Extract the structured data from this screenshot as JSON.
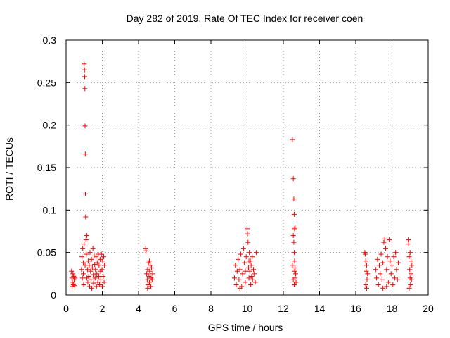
{
  "chart_data": {
    "type": "scatter",
    "title": "Day 282 of 2019, Rate Of TEC Index for receiver coen",
    "xlabel": "GPS time / hours",
    "ylabel": "ROTI / TECUs",
    "xlim": [
      0,
      20
    ],
    "ylim": [
      0,
      0.3
    ],
    "xticks": [
      0,
      2,
      4,
      6,
      8,
      10,
      12,
      14,
      16,
      18,
      20
    ],
    "yticks": [
      0,
      0.05,
      0.1,
      0.15,
      0.2,
      0.25,
      0.3
    ],
    "xtick_labels": [
      "0",
      "2",
      "4",
      "6",
      "8",
      "10",
      "12",
      "14",
      "16",
      "18",
      "20"
    ],
    "ytick_labels": [
      "0",
      "0.05",
      "0.1",
      "0.15",
      "0.2",
      "0.25",
      "0.3"
    ],
    "grid": true,
    "marker": "plus",
    "marker_color": "#ff0000",
    "series": [
      {
        "name": "ROTI",
        "points": [
          [
            0.3,
            0.028
          ],
          [
            0.32,
            0.02
          ],
          [
            0.35,
            0.015
          ],
          [
            0.38,
            0.025
          ],
          [
            0.4,
            0.012
          ],
          [
            0.42,
            0.022
          ],
          [
            0.45,
            0.018
          ],
          [
            0.48,
            0.011
          ],
          [
            0.5,
            0.02
          ],
          [
            0.33,
            0.01
          ],
          [
            0.85,
            0.03
          ],
          [
            0.88,
            0.045
          ],
          [
            0.9,
            0.02
          ],
          [
            0.92,
            0.055
          ],
          [
            0.95,
            0.038
          ],
          [
            0.97,
            0.012
          ],
          [
            1.0,
            0.06
          ],
          [
            1.0,
            0.272
          ],
          [
            1.02,
            0.265
          ],
          [
            1.03,
            0.257
          ],
          [
            1.04,
            0.243
          ],
          [
            1.05,
            0.199
          ],
          [
            1.06,
            0.166
          ],
          [
            1.07,
            0.119
          ],
          [
            1.08,
            0.092
          ],
          [
            1.1,
            0.065
          ],
          [
            1.12,
            0.048
          ],
          [
            1.15,
            0.07
          ],
          [
            1.18,
            0.03
          ],
          [
            1.2,
            0.015
          ],
          [
            1.22,
            0.04
          ],
          [
            1.25,
            0.022
          ],
          [
            1.28,
            0.035
          ],
          [
            1.3,
            0.01
          ],
          [
            1.32,
            0.05
          ],
          [
            1.35,
            0.028
          ],
          [
            1.38,
            0.018
          ],
          [
            1.4,
            0.042
          ],
          [
            1.42,
            0.008
          ],
          [
            1.45,
            0.032
          ],
          [
            1.48,
            0.055
          ],
          [
            1.5,
            0.024
          ],
          [
            1.52,
            0.014
          ],
          [
            1.55,
            0.046
          ],
          [
            1.58,
            0.036
          ],
          [
            1.6,
            0.02
          ],
          [
            1.62,
            0.03
          ],
          [
            1.65,
            0.045
          ],
          [
            1.68,
            0.01
          ],
          [
            1.7,
            0.025
          ],
          [
            1.72,
            0.038
          ],
          [
            1.75,
            0.015
          ],
          [
            1.78,
            0.048
          ],
          [
            1.8,
            0.022
          ],
          [
            1.82,
            0.035
          ],
          [
            1.85,
            0.012
          ],
          [
            1.88,
            0.042
          ],
          [
            1.9,
            0.028
          ],
          [
            1.92,
            0.018
          ],
          [
            1.95,
            0.048
          ],
          [
            1.98,
            0.03
          ],
          [
            2.0,
            0.01
          ],
          [
            2.02,
            0.04
          ],
          [
            2.05,
            0.022
          ],
          [
            2.08,
            0.045
          ],
          [
            2.1,
            0.015
          ],
          [
            2.12,
            0.035
          ],
          [
            0.95,
            0.025
          ],
          [
            1.05,
            0.035
          ],
          [
            1.15,
            0.02
          ],
          [
            4.4,
            0.055
          ],
          [
            4.42,
            0.052
          ],
          [
            4.45,
            0.025
          ],
          [
            4.48,
            0.018
          ],
          [
            4.5,
            0.03
          ],
          [
            4.52,
            0.012
          ],
          [
            4.55,
            0.038
          ],
          [
            4.58,
            0.022
          ],
          [
            4.6,
            0.015
          ],
          [
            4.62,
            0.028
          ],
          [
            4.65,
            0.035
          ],
          [
            4.68,
            0.01
          ],
          [
            4.7,
            0.02
          ],
          [
            4.72,
            0.032
          ],
          [
            4.75,
            0.018
          ],
          [
            4.78,
            0.025
          ],
          [
            4.5,
            0.008
          ],
          [
            4.6,
            0.04
          ],
          [
            9.3,
            0.02
          ],
          [
            9.35,
            0.035
          ],
          [
            9.4,
            0.012
          ],
          [
            9.45,
            0.028
          ],
          [
            9.5,
            0.042
          ],
          [
            9.55,
            0.018
          ],
          [
            9.6,
            0.03
          ],
          [
            9.65,
            0.048
          ],
          [
            9.7,
            0.01
          ],
          [
            9.75,
            0.025
          ],
          [
            9.8,
            0.055
          ],
          [
            9.85,
            0.038
          ],
          [
            9.9,
            0.015
          ],
          [
            9.95,
            0.045
          ],
          [
            10.0,
            0.078
          ],
          [
            10.02,
            0.072
          ],
          [
            10.05,
            0.062
          ],
          [
            10.08,
            0.032
          ],
          [
            10.1,
            0.02
          ],
          [
            10.12,
            0.05
          ],
          [
            10.15,
            0.028
          ],
          [
            10.18,
            0.04
          ],
          [
            10.2,
            0.012
          ],
          [
            10.22,
            0.035
          ],
          [
            10.25,
            0.022
          ],
          [
            10.28,
            0.045
          ],
          [
            10.3,
            0.018
          ],
          [
            10.35,
            0.03
          ],
          [
            10.4,
            0.025
          ],
          [
            10.45,
            0.015
          ],
          [
            10.5,
            0.05
          ],
          [
            9.6,
            0.008
          ],
          [
            9.9,
            0.028
          ],
          [
            10.1,
            0.04
          ],
          [
            12.5,
            0.183
          ],
          [
            12.55,
            0.137
          ],
          [
            12.58,
            0.113
          ],
          [
            12.6,
            0.095
          ],
          [
            12.62,
            0.078
          ],
          [
            12.65,
            0.08
          ],
          [
            12.55,
            0.07
          ],
          [
            12.58,
            0.062
          ],
          [
            12.6,
            0.05
          ],
          [
            12.62,
            0.04
          ],
          [
            12.65,
            0.032
          ],
          [
            12.68,
            0.025
          ],
          [
            12.55,
            0.018
          ],
          [
            12.6,
            0.012
          ],
          [
            12.62,
            0.028
          ],
          [
            12.65,
            0.02
          ],
          [
            12.5,
            0.035
          ],
          [
            12.7,
            0.015
          ],
          [
            16.5,
            0.05
          ],
          [
            16.52,
            0.048
          ],
          [
            16.55,
            0.04
          ],
          [
            16.58,
            0.028
          ],
          [
            16.6,
            0.035
          ],
          [
            16.62,
            0.018
          ],
          [
            16.65,
            0.025
          ],
          [
            16.55,
            0.012
          ],
          [
            16.6,
            0.008
          ],
          [
            17.1,
            0.03
          ],
          [
            17.15,
            0.02
          ],
          [
            17.2,
            0.042
          ],
          [
            17.25,
            0.012
          ],
          [
            17.3,
            0.035
          ],
          [
            17.35,
            0.025
          ],
          [
            17.4,
            0.048
          ],
          [
            17.45,
            0.018
          ],
          [
            17.5,
            0.038
          ],
          [
            17.55,
            0.062
          ],
          [
            17.6,
            0.066
          ],
          [
            17.65,
            0.055
          ],
          [
            17.7,
            0.03
          ],
          [
            17.75,
            0.045
          ],
          [
            17.8,
            0.015
          ],
          [
            17.85,
            0.065
          ],
          [
            17.9,
            0.04
          ],
          [
            17.95,
            0.025
          ],
          [
            18.0,
            0.035
          ],
          [
            18.05,
            0.012
          ],
          [
            18.1,
            0.045
          ],
          [
            18.15,
            0.02
          ],
          [
            18.2,
            0.05
          ],
          [
            18.25,
            0.03
          ],
          [
            18.3,
            0.018
          ],
          [
            18.35,
            0.038
          ],
          [
            17.5,
            0.008
          ],
          [
            17.7,
            0.01
          ],
          [
            18.9,
            0.065
          ],
          [
            18.92,
            0.06
          ],
          [
            18.95,
            0.045
          ],
          [
            18.98,
            0.03
          ],
          [
            19.0,
            0.02
          ],
          [
            19.02,
            0.012
          ],
          [
            19.05,
            0.025
          ],
          [
            19.08,
            0.018
          ],
          [
            19.1,
            0.035
          ],
          [
            18.95,
            0.008
          ],
          [
            19.0,
            0.05
          ],
          [
            19.05,
            0.04
          ]
        ]
      }
    ]
  }
}
